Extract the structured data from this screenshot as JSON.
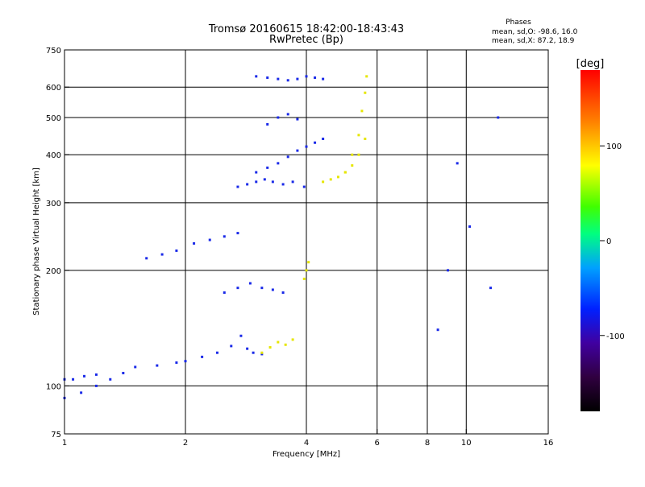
{
  "title_line1": "Tromsø 20160615 18:42:00-18:43:43",
  "title_line2": "RwPretec (Bp)",
  "phase_stats": {
    "header": "Phases",
    "line_o": "mean, sd,O: -98.6, 16.0",
    "line_x": "mean, sd,X:  87.2, 18.9"
  },
  "chart_data": {
    "type": "scatter",
    "title": "Tromsø 20160615 18:42:00-18:43:43",
    "subtitle": "RwPretec (Bp)",
    "xlabel": "Frequency [MHz]",
    "ylabel": "Stationary phase Virtual Height [km]",
    "x_scale": "log",
    "y_scale": "log",
    "xlim": [
      1,
      16
    ],
    "ylim": [
      75,
      750
    ],
    "x_ticks": [
      1,
      2,
      4,
      6,
      8,
      10,
      16
    ],
    "x_tick_labels": [
      "1",
      "2",
      "4",
      "6",
      "8",
      "10",
      "16"
    ],
    "y_ticks": [
      75,
      100,
      200,
      300,
      400,
      500,
      600,
      750
    ],
    "y_tick_labels": [
      "75",
      "100",
      "200",
      "300",
      "400",
      "500",
      "600",
      "750"
    ],
    "grid": true,
    "colorbar": {
      "label": "[deg]",
      "range": [
        -180,
        180
      ],
      "ticks": [
        100,
        0,
        -100
      ],
      "tick_labels": [
        "100",
        "0",
        "-100"
      ]
    },
    "traces": [
      {
        "name": "E_lower",
        "phase": -95,
        "x": [
          1.0,
          1.1,
          1.2,
          1.3,
          1.4,
          1.5,
          1.7,
          1.9,
          2.0,
          2.2,
          2.4,
          2.6,
          2.75,
          2.85,
          2.95,
          3.1
        ],
        "y": [
          93,
          96,
          100,
          104,
          108,
          112,
          113,
          115,
          116,
          119,
          122,
          127,
          135,
          125,
          122,
          121
        ]
      },
      {
        "name": "E_upper",
        "phase": -95,
        "x": [
          1.0,
          1.05,
          1.12,
          1.2
        ],
        "y": [
          104,
          104,
          106,
          107
        ]
      },
      {
        "name": "Es_yellow",
        "phase": 100,
        "x": [
          3.1,
          3.25,
          3.4,
          3.55,
          3.7
        ],
        "y": [
          122,
          126,
          130,
          128,
          132
        ]
      },
      {
        "name": "F_trace_low",
        "phase": -100,
        "x": [
          1.6,
          1.75,
          1.9,
          2.1,
          2.3,
          2.5,
          2.7
        ],
        "y": [
          215,
          220,
          225,
          235,
          240,
          245,
          250
        ]
      },
      {
        "name": "F_trace_mid",
        "phase": -100,
        "x": [
          2.7,
          2.85,
          3.0,
          3.15,
          3.3,
          3.5,
          3.7,
          3.95
        ],
        "y": [
          330,
          335,
          340,
          345,
          340,
          335,
          340,
          330
        ]
      },
      {
        "name": "F_trace_upper",
        "phase": -100,
        "x": [
          3.0,
          3.2,
          3.4,
          3.6,
          3.8,
          4.0,
          4.2,
          4.4
        ],
        "y": [
          360,
          370,
          380,
          395,
          410,
          420,
          430,
          440
        ]
      },
      {
        "name": "F_cusp_x",
        "phase": 110,
        "x": [
          4.4,
          4.6,
          4.8,
          5.0,
          5.2,
          5.4,
          5.6
        ],
        "y": [
          340,
          345,
          350,
          360,
          375,
          400,
          440
        ]
      },
      {
        "name": "F_cusp_high",
        "phase": 100,
        "x": [
          5.0,
          5.2,
          5.4,
          5.5,
          5.6,
          5.65
        ],
        "y": [
          360,
          400,
          450,
          520,
          580,
          640
        ]
      },
      {
        "name": "Spread_F_high",
        "phase": -105,
        "x": [
          3.0,
          3.2,
          3.4,
          3.6,
          3.8,
          4.0,
          4.2,
          4.4
        ],
        "y": [
          640,
          635,
          630,
          625,
          630,
          640,
          635,
          630
        ]
      },
      {
        "name": "Spread_F_500",
        "phase": -100,
        "x": [
          3.2,
          3.4,
          3.6,
          3.8
        ],
        "y": [
          480,
          500,
          510,
          495
        ]
      },
      {
        "name": "Spread_180",
        "phase": -100,
        "x": [
          2.5,
          2.7,
          2.9,
          3.1,
          3.3,
          3.5
        ],
        "y": [
          175,
          180,
          185,
          180,
          178,
          175
        ]
      },
      {
        "name": "Yellow_200",
        "phase": 100,
        "x": [
          3.95,
          4.0,
          4.05
        ],
        "y": [
          190,
          200,
          210
        ]
      },
      {
        "name": "Sparse_high_freq",
        "phase": -100,
        "x": [
          8.5,
          9.0,
          9.5,
          10.2,
          11.5,
          12.0
        ],
        "y": [
          140,
          200,
          380,
          260,
          180,
          500
        ]
      }
    ]
  }
}
